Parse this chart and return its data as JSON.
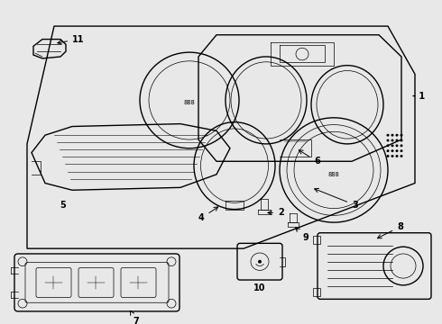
{
  "background_color": "#e8e8e8",
  "line_color": "#000000",
  "label_color": "#000000",
  "fig_width": 4.9,
  "fig_height": 3.6,
  "dpi": 100
}
